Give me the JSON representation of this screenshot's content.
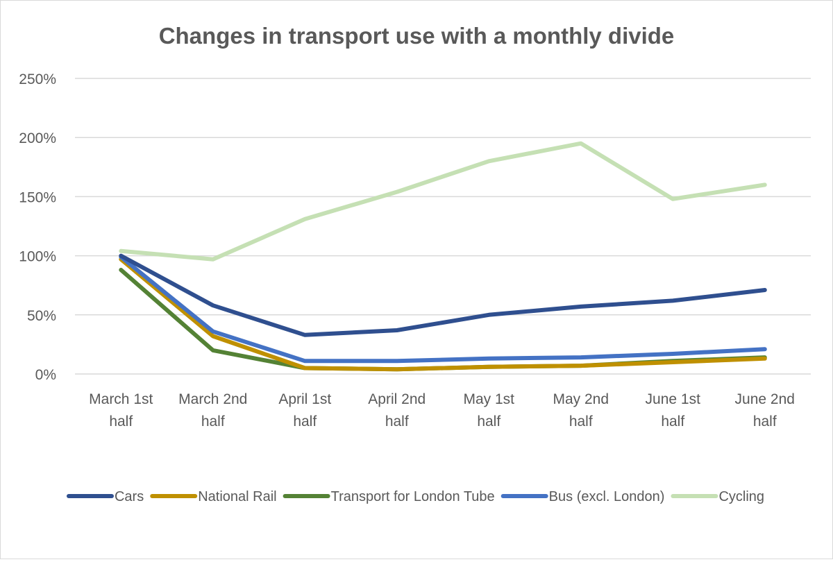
{
  "chart_data": {
    "type": "line",
    "title": "Changes in transport use with a monthly divide",
    "xlabel": "",
    "ylabel": "",
    "categories": [
      [
        "March 1st",
        "half"
      ],
      [
        "March 2nd",
        "half"
      ],
      [
        "April 1st",
        "half"
      ],
      [
        "April 2nd",
        "half"
      ],
      [
        "May 1st",
        "half"
      ],
      [
        "May 2nd",
        "half"
      ],
      [
        "June 1st",
        "half"
      ],
      [
        "June 2nd",
        "half"
      ]
    ],
    "ylim": [
      0,
      250
    ],
    "y_ticks": [
      0,
      50,
      100,
      150,
      200,
      250
    ],
    "y_tick_suffix": "%",
    "grid": true,
    "legend_position": "bottom",
    "series": [
      {
        "name": "Cars",
        "color": "#2f4f8f",
        "values": [
          100,
          58,
          33,
          37,
          50,
          57,
          62,
          71
        ]
      },
      {
        "name": "National Rail",
        "color": "#bf9000",
        "values": [
          97,
          32,
          5,
          4,
          6,
          7,
          10,
          13
        ]
      },
      {
        "name": "Transport for London Tube",
        "color": "#548235",
        "values": [
          88,
          20,
          5,
          4,
          6,
          7,
          11,
          14
        ]
      },
      {
        "name": "Bus (excl. London)",
        "color": "#4472c4",
        "values": [
          99,
          36,
          11,
          11,
          13,
          14,
          17,
          21
        ]
      },
      {
        "name": "Cycling",
        "color": "#c5e0b4",
        "values": [
          104,
          97,
          131,
          154,
          180,
          195,
          148,
          160
        ]
      }
    ]
  }
}
